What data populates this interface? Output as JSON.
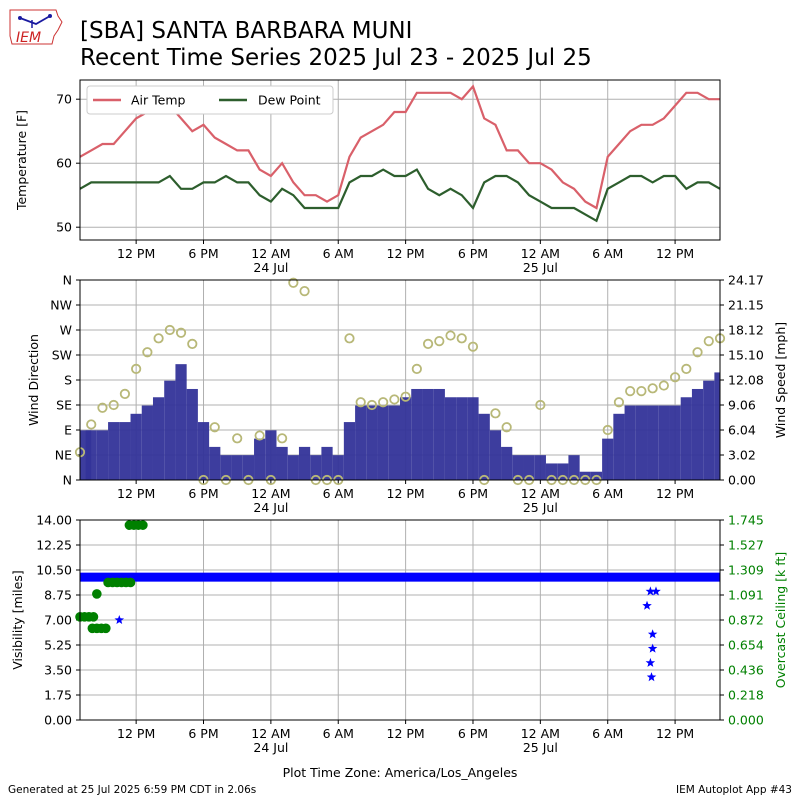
{
  "header": {
    "logo_text": "IEM",
    "title_line1": "[SBA] SANTA BARBARA MUNI",
    "title_line2": "Recent Time Series 2025 Jul 23 - 2025 Jul 25"
  },
  "footer": {
    "generated": "Generated at 25 Jul 2025 6:59 PM CDT in 2.06s",
    "app": "IEM Autoplot App #43",
    "timezone": "Plot Time Zone: America/Los_Angeles"
  },
  "colors": {
    "air_temp": "#d9606a",
    "dew_point": "#2d5e2d",
    "wind_speed": "#333399",
    "wind_dir": "#b8b878",
    "visibility": "#0000ff",
    "ceiling": "#008000",
    "grid": "#b0b0b0"
  },
  "x_axis": {
    "range_hours": [
      0,
      57
    ],
    "ticks": [
      {
        "h": 5,
        "label": "12 PM",
        "sub": ""
      },
      {
        "h": 11,
        "label": "6 PM",
        "sub": ""
      },
      {
        "h": 17,
        "label": "12 AM",
        "sub": "24 Jul"
      },
      {
        "h": 23,
        "label": "6 AM",
        "sub": ""
      },
      {
        "h": 29,
        "label": "12 PM",
        "sub": ""
      },
      {
        "h": 35,
        "label": "6 PM",
        "sub": ""
      },
      {
        "h": 41,
        "label": "12 AM",
        "sub": "25 Jul"
      },
      {
        "h": 47,
        "label": "6 AM",
        "sub": ""
      },
      {
        "h": 53,
        "label": "12 PM",
        "sub": ""
      }
    ]
  },
  "chart_data": [
    {
      "type": "line",
      "panel": "temperature",
      "ylabel": "Temperature [F]",
      "ylim": [
        48,
        73
      ],
      "yticks": [
        50,
        60,
        70
      ],
      "grid": true,
      "legend": "top-left",
      "x_hours": [
        0,
        1,
        2,
        3,
        4,
        5,
        6,
        7,
        8,
        9,
        10,
        11,
        12,
        13,
        14,
        15,
        16,
        17,
        18,
        19,
        20,
        21,
        22,
        23,
        24,
        25,
        26,
        27,
        28,
        29,
        30,
        31,
        32,
        33,
        34,
        35,
        36,
        37,
        38,
        39,
        40,
        41,
        42,
        43,
        44,
        45,
        46,
        47,
        48,
        49,
        50,
        51,
        52,
        53,
        54,
        55,
        56,
        57
      ],
      "series": [
        {
          "name": "Air Temp",
          "values": [
            61,
            62,
            63,
            63,
            65,
            67,
            68,
            68,
            69,
            67,
            65,
            66,
            64,
            63,
            62,
            62,
            59,
            58,
            60,
            57,
            55,
            55,
            54,
            55,
            61,
            64,
            65,
            66,
            68,
            68,
            71,
            71,
            71,
            71,
            70,
            72,
            67,
            66,
            62,
            62,
            60,
            60,
            59,
            57,
            56,
            54,
            53,
            61,
            63,
            65,
            66,
            66,
            67,
            69,
            71,
            71,
            70,
            70
          ]
        },
        {
          "name": "Dew Point",
          "values": [
            56,
            57,
            57,
            57,
            57,
            57,
            57,
            57,
            58,
            56,
            56,
            57,
            57,
            58,
            57,
            57,
            55,
            54,
            56,
            55,
            53,
            53,
            53,
            53,
            57,
            58,
            58,
            59,
            58,
            58,
            59,
            56,
            55,
            56,
            55,
            53,
            57,
            58,
            58,
            57,
            55,
            54,
            53,
            53,
            53,
            52,
            51,
            56,
            57,
            58,
            58,
            57,
            58,
            58,
            56,
            57,
            57,
            56
          ]
        }
      ]
    },
    {
      "type": "bar",
      "panel": "wind",
      "ylabel_left": "Wind Direction",
      "ylabel_right": "Wind Speed [mph]",
      "dir_ticks": [
        "N",
        "NE",
        "E",
        "SE",
        "S",
        "SW",
        "W",
        "NW",
        "N"
      ],
      "speed_ticks": [
        "0.00",
        "3.02",
        "6.04",
        "9.06",
        "12.08",
        "15.10",
        "18.12",
        "21.15",
        "24.17"
      ],
      "speed_ylim": [
        0,
        24.17
      ],
      "grid": true,
      "speed_hours": [
        0,
        1,
        2,
        3,
        4,
        5,
        6,
        7,
        8,
        9,
        10,
        11,
        12,
        13,
        14,
        15,
        16,
        17,
        18,
        19,
        20,
        21,
        22,
        23,
        24,
        25,
        26,
        27,
        28,
        29,
        30,
        31,
        32,
        33,
        34,
        35,
        36,
        37,
        38,
        39,
        40,
        41,
        42,
        43,
        44,
        45,
        46,
        47,
        48,
        49,
        50,
        51,
        52,
        53,
        54,
        55,
        56,
        57
      ],
      "speed_mph": [
        6,
        6,
        6,
        7,
        7,
        8,
        9,
        10,
        12,
        14,
        11,
        7,
        4,
        3,
        3,
        3,
        5,
        6,
        4,
        3,
        4,
        3,
        4,
        3,
        7,
        9,
        9,
        9,
        9,
        10,
        11,
        11,
        11,
        10,
        10,
        10,
        8,
        6,
        4,
        3,
        3,
        3,
        2,
        2,
        3,
        1,
        1,
        5,
        8,
        9,
        9,
        9,
        9,
        9,
        10,
        11,
        12,
        13
      ],
      "dir_hours": [
        0,
        1,
        2,
        3,
        4,
        5,
        6,
        7,
        8,
        9,
        10,
        11,
        12,
        13,
        14,
        15,
        16,
        17,
        18,
        19,
        20,
        21,
        22,
        23,
        24,
        25,
        26,
        27,
        28,
        29,
        30,
        31,
        32,
        33,
        34,
        35,
        36,
        37,
        38,
        39,
        40,
        41,
        42,
        43,
        44,
        45,
        46,
        47,
        48,
        49,
        50,
        51,
        52,
        53,
        54,
        55,
        56,
        57
      ],
      "dir_deg": [
        50,
        100,
        130,
        135,
        155,
        200,
        230,
        255,
        270,
        265,
        245,
        0,
        95,
        0,
        75,
        0,
        80,
        0,
        75,
        355,
        340,
        0,
        0,
        0,
        255,
        140,
        135,
        140,
        145,
        150,
        200,
        245,
        250,
        260,
        255,
        240,
        0,
        120,
        95,
        0,
        0,
        135,
        0,
        0,
        0,
        0,
        0,
        90,
        140,
        160,
        160,
        165,
        170,
        185,
        200,
        230,
        250,
        255
      ]
    },
    {
      "type": "scatter",
      "panel": "visibility",
      "ylabel_left": "Visibility [miles]",
      "ylabel_right": "Overcast Ceiling [k ft]",
      "vis_ticks": [
        "0.00",
        "1.75",
        "3.50",
        "5.25",
        "7.00",
        "8.75",
        "10.50",
        "12.25",
        "14.00"
      ],
      "ceiling_ticks": [
        "0.000",
        "0.218",
        "0.436",
        "0.654",
        "0.872",
        "1.091",
        "1.309",
        "1.527",
        "1.745"
      ],
      "vis_ylim": [
        0,
        14
      ],
      "ceiling_ylim": [
        0,
        1.745
      ],
      "grid": true,
      "visibility_band": {
        "x_range_hours": [
          0,
          57
        ],
        "miles": 10
      },
      "visibility_points": [
        {
          "h": 3.5,
          "miles": 7
        },
        {
          "h": 50.5,
          "miles": 8
        },
        {
          "h": 50.8,
          "miles": 9
        },
        {
          "h": 51.3,
          "miles": 9
        },
        {
          "h": 51.0,
          "miles": 6
        },
        {
          "h": 51.0,
          "miles": 5
        },
        {
          "h": 50.8,
          "miles": 4
        },
        {
          "h": 50.9,
          "miles": 3
        }
      ],
      "ceiling_points": [
        {
          "h": 0.0,
          "kft": 0.9
        },
        {
          "h": 0.4,
          "kft": 0.9
        },
        {
          "h": 0.8,
          "kft": 0.9
        },
        {
          "h": 1.2,
          "kft": 0.9
        },
        {
          "h": 1.1,
          "kft": 0.8
        },
        {
          "h": 1.5,
          "kft": 0.8
        },
        {
          "h": 1.9,
          "kft": 0.8
        },
        {
          "h": 2.3,
          "kft": 0.8
        },
        {
          "h": 1.5,
          "kft": 1.1
        },
        {
          "h": 2.5,
          "kft": 1.2
        },
        {
          "h": 2.9,
          "kft": 1.2
        },
        {
          "h": 3.3,
          "kft": 1.2
        },
        {
          "h": 3.7,
          "kft": 1.2
        },
        {
          "h": 4.1,
          "kft": 1.2
        },
        {
          "h": 4.5,
          "kft": 1.2
        },
        {
          "h": 4.4,
          "kft": 1.7
        },
        {
          "h": 4.8,
          "kft": 1.7
        },
        {
          "h": 5.2,
          "kft": 1.7
        },
        {
          "h": 5.6,
          "kft": 1.7
        }
      ]
    }
  ]
}
